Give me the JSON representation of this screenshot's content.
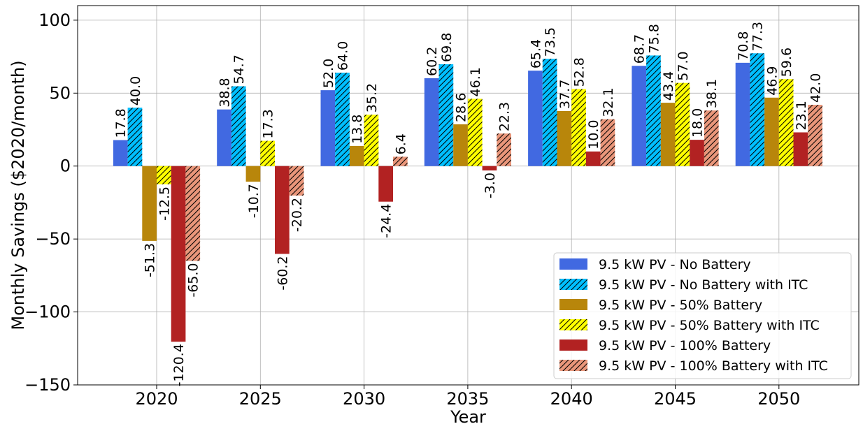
{
  "chart_data": {
    "type": "bar",
    "title": "",
    "xlabel": "Year",
    "ylabel": "Monthly Savings ($2020/month)",
    "ylim": [
      -150,
      110
    ],
    "yticks": [
      100,
      50,
      0,
      -50,
      -100,
      -150
    ],
    "ytick_labels": [
      "100",
      "50",
      "0",
      "−50",
      "−100",
      "−150"
    ],
    "grid": true,
    "legend_position": "lower-right",
    "categories": [
      "2020",
      "2025",
      "2030",
      "2035",
      "2040",
      "2045",
      "2050"
    ],
    "series": [
      {
        "name": "9.5 kW PV - No Battery",
        "color": "#4169e1",
        "hatch": "none",
        "values": [
          17.8,
          38.8,
          52.0,
          60.2,
          65.4,
          68.7,
          70.8
        ],
        "labels": [
          "17.8",
          "38.8",
          "52.0",
          "60.2",
          "65.4",
          "68.7",
          "70.8"
        ]
      },
      {
        "name": "9.5 kW PV - No Battery with ITC",
        "color": "#00bfff",
        "hatch": "diagonal",
        "values": [
          40.0,
          54.7,
          64.0,
          69.8,
          73.5,
          75.8,
          77.3
        ],
        "labels": [
          "40.0",
          "54.7",
          "64.0",
          "69.8",
          "73.5",
          "75.8",
          "77.3"
        ]
      },
      {
        "name": "9.5 kW PV - 50% Battery",
        "color": "#b8860b",
        "hatch": "none",
        "values": [
          -51.3,
          -10.7,
          13.8,
          28.6,
          37.7,
          43.4,
          46.9
        ],
        "labels": [
          "-51.3",
          "-10.7",
          "13.8",
          "28.6",
          "37.7",
          "43.4",
          "46.9"
        ]
      },
      {
        "name": "9.5 kW PV - 50% Battery with ITC",
        "color": "#ffff00",
        "hatch": "diagonal",
        "values": [
          -12.5,
          17.3,
          35.2,
          46.1,
          52.8,
          57.0,
          59.6
        ],
        "labels": [
          "-12.5",
          "17.3",
          "35.2",
          "46.1",
          "52.8",
          "57.0",
          "59.6"
        ]
      },
      {
        "name": "9.5 kW PV - 100% Battery",
        "color": "#b22222",
        "hatch": "none",
        "values": [
          -120.4,
          -60.2,
          -24.4,
          -3.0,
          10.0,
          18.0,
          23.1
        ],
        "labels": [
          "-120.4",
          "-60.2",
          "-24.4",
          "-3.0",
          "10.0",
          "18.0",
          "23.1"
        ]
      },
      {
        "name": "9.5 kW PV - 100% Battery with ITC",
        "color": "#e9967a",
        "hatch": "diagonal",
        "values": [
          -65.0,
          -20.2,
          6.4,
          22.3,
          32.1,
          38.1,
          42.0
        ],
        "labels": [
          "-65.0",
          "-20.2",
          "6.4",
          "22.3",
          "32.1",
          "38.1",
          "42.0"
        ]
      }
    ]
  }
}
